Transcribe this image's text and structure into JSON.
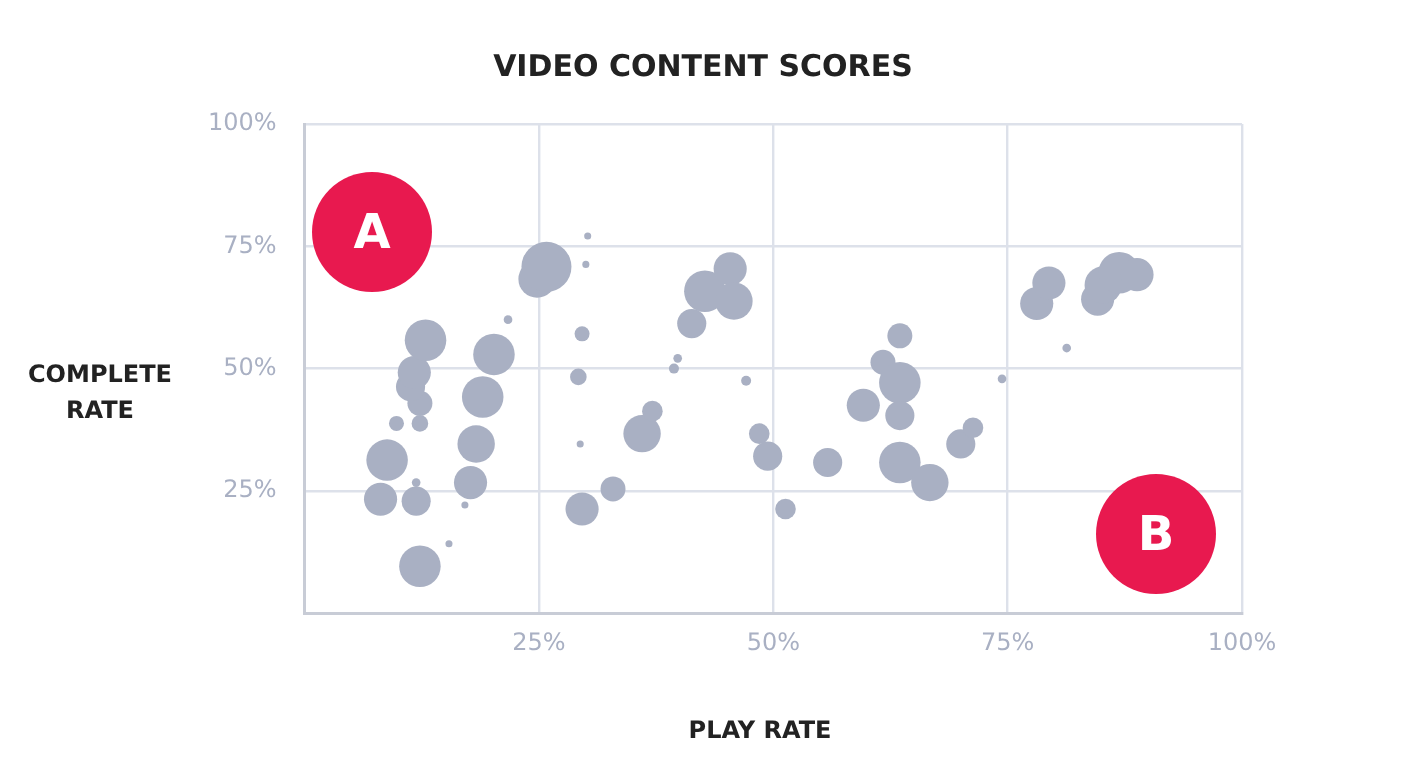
{
  "chart_data": {
    "type": "bubble",
    "title": "VIDEO CONTENT SCORES",
    "xlabel": "PLAY RATE",
    "ylabel": "COMPLETE RATE",
    "annotations": [
      "A",
      "B"
    ],
    "xlim": [
      0,
      100
    ],
    "ylim": [
      0,
      100
    ],
    "xticks": [
      {
        "value": 25,
        "label": "25%"
      },
      {
        "value": 50,
        "label": "50%"
      },
      {
        "value": 75,
        "label": "75%"
      },
      {
        "value": 100,
        "label": "100%"
      }
    ],
    "yticks": [
      {
        "value": 25,
        "label": "25%"
      },
      {
        "value": 50,
        "label": "50%"
      },
      {
        "value": 75,
        "label": "75%"
      },
      {
        "value": 100,
        "label": "100%"
      }
    ],
    "grid": true,
    "series": [
      {
        "color": "#a9b0c3",
        "x": [
          12.3,
          8.1,
          11.9,
          11.9,
          8.8,
          9.8,
          12.3,
          12.3,
          11.3,
          11.7,
          12.9,
          17.7,
          17.1,
          18.3,
          19.0,
          20.2,
          21.7,
          15.4,
          24.8,
          25.8,
          30.2,
          30.0,
          29.6,
          29.2,
          29.4,
          29.6,
          32.9,
          36.0,
          37.1,
          39.4,
          39.8,
          41.3,
          42.7,
          45.4,
          45.8,
          47.1,
          48.5,
          49.4,
          51.3,
          55.8,
          59.6,
          61.7,
          63.5,
          63.5,
          63.5,
          63.5,
          66.7,
          70.0,
          71.3,
          74.4,
          78.1,
          79.4,
          81.3,
          84.6,
          85.2,
          86.9,
          88.8
        ],
        "values": [
          9.6,
          23.3,
          22.9,
          26.7,
          31.3,
          38.8,
          38.8,
          42.9,
          46.3,
          49.2,
          55.8,
          26.7,
          22.1,
          34.6,
          44.2,
          52.9,
          60.0,
          14.2,
          68.3,
          70.8,
          77.1,
          71.3,
          57.1,
          48.3,
          34.6,
          21.3,
          25.4,
          36.7,
          41.3,
          50.0,
          52.1,
          59.2,
          65.8,
          70.4,
          63.8,
          47.5,
          36.7,
          32.1,
          21.3,
          30.8,
          42.5,
          51.3,
          56.7,
          47.1,
          40.4,
          30.8,
          26.7,
          34.6,
          37.9,
          47.9,
          63.3,
          67.5,
          54.2,
          64.2,
          67.1,
          69.6,
          69.2
        ],
        "sizes": [
          0.69,
          0.44,
          0.34,
          0.03,
          0.69,
          0.09,
          0.11,
          0.25,
          0.34,
          0.44,
          0.69,
          0.44,
          0.02,
          0.56,
          0.69,
          0.69,
          0.03,
          0.02,
          0.56,
          1,
          0.02,
          0.02,
          0.09,
          0.11,
          0.02,
          0.44,
          0.25,
          0.56,
          0.17,
          0.04,
          0.03,
          0.34,
          0.69,
          0.44,
          0.56,
          0.04,
          0.17,
          0.34,
          0.17,
          0.34,
          0.44,
          0.25,
          0.25,
          0.69,
          0.34,
          0.69,
          0.56,
          0.34,
          0.17,
          0.03,
          0.44,
          0.44,
          0.03,
          0.44,
          0.56,
          0.69,
          0.44
        ]
      }
    ]
  }
}
